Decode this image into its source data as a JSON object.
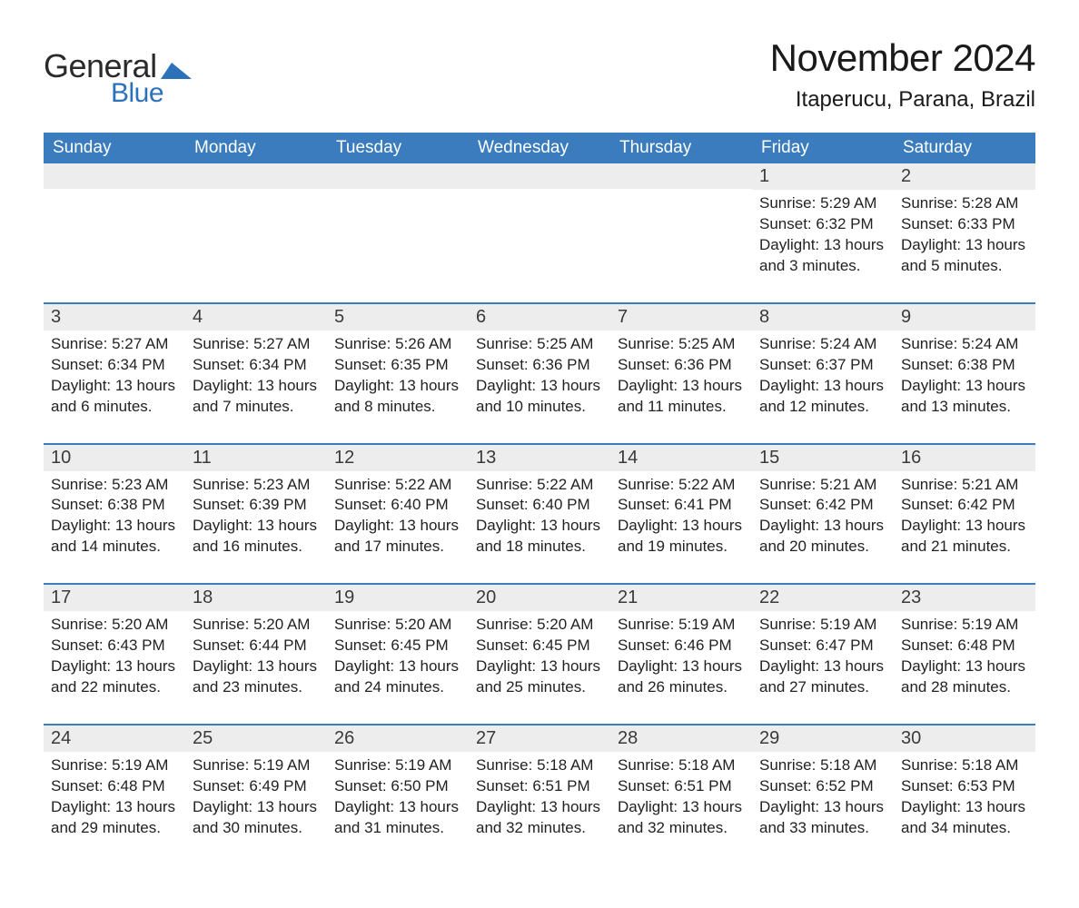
{
  "brand": {
    "text_main": "General",
    "text_sub": "Blue",
    "flag_color": "#2b72b8",
    "main_color": "#2a2a2a"
  },
  "title": {
    "month": "November 2024",
    "location": "Itaperucu, Parana, Brazil"
  },
  "colors": {
    "header_bg": "#3a7cbd",
    "header_fg": "#ffffff",
    "daynum_bg": "#ededed",
    "daynum_fg": "#3a3a3a",
    "week_border": "#3a7cbd",
    "page_bg": "#ffffff",
    "text": "#222222"
  },
  "typography": {
    "month_fontsize": 42,
    "location_fontsize": 24,
    "dow_fontsize": 19,
    "daynum_fontsize": 20,
    "body_fontsize": 17
  },
  "dow": [
    "Sunday",
    "Monday",
    "Tuesday",
    "Wednesday",
    "Thursday",
    "Friday",
    "Saturday"
  ],
  "weeks": [
    [
      {
        "n": "",
        "sunrise": "",
        "sunset": "",
        "daylight": ""
      },
      {
        "n": "",
        "sunrise": "",
        "sunset": "",
        "daylight": ""
      },
      {
        "n": "",
        "sunrise": "",
        "sunset": "",
        "daylight": ""
      },
      {
        "n": "",
        "sunrise": "",
        "sunset": "",
        "daylight": ""
      },
      {
        "n": "",
        "sunrise": "",
        "sunset": "",
        "daylight": ""
      },
      {
        "n": "1",
        "sunrise": "Sunrise: 5:29 AM",
        "sunset": "Sunset: 6:32 PM",
        "daylight": "Daylight: 13 hours and 3 minutes."
      },
      {
        "n": "2",
        "sunrise": "Sunrise: 5:28 AM",
        "sunset": "Sunset: 6:33 PM",
        "daylight": "Daylight: 13 hours and 5 minutes."
      }
    ],
    [
      {
        "n": "3",
        "sunrise": "Sunrise: 5:27 AM",
        "sunset": "Sunset: 6:34 PM",
        "daylight": "Daylight: 13 hours and 6 minutes."
      },
      {
        "n": "4",
        "sunrise": "Sunrise: 5:27 AM",
        "sunset": "Sunset: 6:34 PM",
        "daylight": "Daylight: 13 hours and 7 minutes."
      },
      {
        "n": "5",
        "sunrise": "Sunrise: 5:26 AM",
        "sunset": "Sunset: 6:35 PM",
        "daylight": "Daylight: 13 hours and 8 minutes."
      },
      {
        "n": "6",
        "sunrise": "Sunrise: 5:25 AM",
        "sunset": "Sunset: 6:36 PM",
        "daylight": "Daylight: 13 hours and 10 minutes."
      },
      {
        "n": "7",
        "sunrise": "Sunrise: 5:25 AM",
        "sunset": "Sunset: 6:36 PM",
        "daylight": "Daylight: 13 hours and 11 minutes."
      },
      {
        "n": "8",
        "sunrise": "Sunrise: 5:24 AM",
        "sunset": "Sunset: 6:37 PM",
        "daylight": "Daylight: 13 hours and 12 minutes."
      },
      {
        "n": "9",
        "sunrise": "Sunrise: 5:24 AM",
        "sunset": "Sunset: 6:38 PM",
        "daylight": "Daylight: 13 hours and 13 minutes."
      }
    ],
    [
      {
        "n": "10",
        "sunrise": "Sunrise: 5:23 AM",
        "sunset": "Sunset: 6:38 PM",
        "daylight": "Daylight: 13 hours and 14 minutes."
      },
      {
        "n": "11",
        "sunrise": "Sunrise: 5:23 AM",
        "sunset": "Sunset: 6:39 PM",
        "daylight": "Daylight: 13 hours and 16 minutes."
      },
      {
        "n": "12",
        "sunrise": "Sunrise: 5:22 AM",
        "sunset": "Sunset: 6:40 PM",
        "daylight": "Daylight: 13 hours and 17 minutes."
      },
      {
        "n": "13",
        "sunrise": "Sunrise: 5:22 AM",
        "sunset": "Sunset: 6:40 PM",
        "daylight": "Daylight: 13 hours and 18 minutes."
      },
      {
        "n": "14",
        "sunrise": "Sunrise: 5:22 AM",
        "sunset": "Sunset: 6:41 PM",
        "daylight": "Daylight: 13 hours and 19 minutes."
      },
      {
        "n": "15",
        "sunrise": "Sunrise: 5:21 AM",
        "sunset": "Sunset: 6:42 PM",
        "daylight": "Daylight: 13 hours and 20 minutes."
      },
      {
        "n": "16",
        "sunrise": "Sunrise: 5:21 AM",
        "sunset": "Sunset: 6:42 PM",
        "daylight": "Daylight: 13 hours and 21 minutes."
      }
    ],
    [
      {
        "n": "17",
        "sunrise": "Sunrise: 5:20 AM",
        "sunset": "Sunset: 6:43 PM",
        "daylight": "Daylight: 13 hours and 22 minutes."
      },
      {
        "n": "18",
        "sunrise": "Sunrise: 5:20 AM",
        "sunset": "Sunset: 6:44 PM",
        "daylight": "Daylight: 13 hours and 23 minutes."
      },
      {
        "n": "19",
        "sunrise": "Sunrise: 5:20 AM",
        "sunset": "Sunset: 6:45 PM",
        "daylight": "Daylight: 13 hours and 24 minutes."
      },
      {
        "n": "20",
        "sunrise": "Sunrise: 5:20 AM",
        "sunset": "Sunset: 6:45 PM",
        "daylight": "Daylight: 13 hours and 25 minutes."
      },
      {
        "n": "21",
        "sunrise": "Sunrise: 5:19 AM",
        "sunset": "Sunset: 6:46 PM",
        "daylight": "Daylight: 13 hours and 26 minutes."
      },
      {
        "n": "22",
        "sunrise": "Sunrise: 5:19 AM",
        "sunset": "Sunset: 6:47 PM",
        "daylight": "Daylight: 13 hours and 27 minutes."
      },
      {
        "n": "23",
        "sunrise": "Sunrise: 5:19 AM",
        "sunset": "Sunset: 6:48 PM",
        "daylight": "Daylight: 13 hours and 28 minutes."
      }
    ],
    [
      {
        "n": "24",
        "sunrise": "Sunrise: 5:19 AM",
        "sunset": "Sunset: 6:48 PM",
        "daylight": "Daylight: 13 hours and 29 minutes."
      },
      {
        "n": "25",
        "sunrise": "Sunrise: 5:19 AM",
        "sunset": "Sunset: 6:49 PM",
        "daylight": "Daylight: 13 hours and 30 minutes."
      },
      {
        "n": "26",
        "sunrise": "Sunrise: 5:19 AM",
        "sunset": "Sunset: 6:50 PM",
        "daylight": "Daylight: 13 hours and 31 minutes."
      },
      {
        "n": "27",
        "sunrise": "Sunrise: 5:18 AM",
        "sunset": "Sunset: 6:51 PM",
        "daylight": "Daylight: 13 hours and 32 minutes."
      },
      {
        "n": "28",
        "sunrise": "Sunrise: 5:18 AM",
        "sunset": "Sunset: 6:51 PM",
        "daylight": "Daylight: 13 hours and 32 minutes."
      },
      {
        "n": "29",
        "sunrise": "Sunrise: 5:18 AM",
        "sunset": "Sunset: 6:52 PM",
        "daylight": "Daylight: 13 hours and 33 minutes."
      },
      {
        "n": "30",
        "sunrise": "Sunrise: 5:18 AM",
        "sunset": "Sunset: 6:53 PM",
        "daylight": "Daylight: 13 hours and 34 minutes."
      }
    ]
  ]
}
